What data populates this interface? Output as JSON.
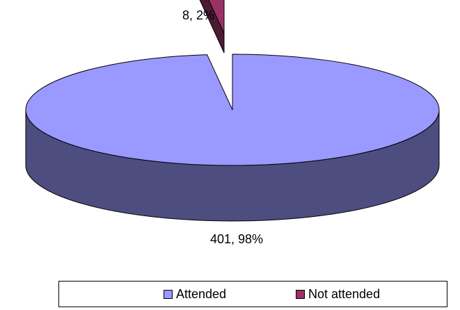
{
  "chart_data": {
    "type": "pie",
    "style": "3d-exploded",
    "categories": [
      "Attended",
      "Not attended"
    ],
    "values": [
      401,
      8
    ],
    "percentages": [
      98,
      2
    ],
    "data_labels": [
      "401, 98%",
      "8, 2%"
    ],
    "colors": {
      "Attended": "#9999ff",
      "Attended_side": "#4d4d80",
      "Not attended": "#993366",
      "Not attended_side": "#4d1a33"
    },
    "legend_placement": "bottom"
  },
  "legend": {
    "items": [
      {
        "label": "Attended",
        "color": "#9999ff"
      },
      {
        "label": "Not attended",
        "color": "#993366"
      }
    ]
  }
}
